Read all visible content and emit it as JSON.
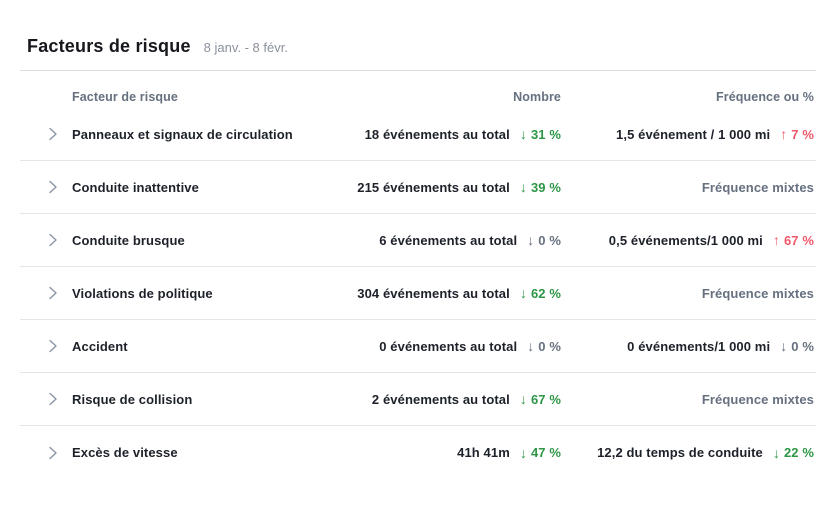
{
  "header": {
    "title": "Facteurs de risque",
    "date_range": "8 janv. - 8 févr."
  },
  "table": {
    "columns": {
      "factor": "Facteur de risque",
      "count": "Nombre",
      "frequency": "Fréquence ou %"
    },
    "rows": [
      {
        "factor": "Panneaux et signaux de circulation",
        "count_value": "18 événements au total",
        "count_trend": {
          "direction": "down",
          "value": "31 %",
          "color": "green"
        },
        "freq_value": "1,5 événement / 1 000 mi",
        "freq_trend": {
          "direction": "up",
          "value": "7 %",
          "color": "red"
        }
      },
      {
        "factor": "Conduite inattentive",
        "count_value": "215 événements au total",
        "count_trend": {
          "direction": "down",
          "value": "39 %",
          "color": "green"
        },
        "freq_mixed": "Fréquence mixtes"
      },
      {
        "factor": "Conduite brusque",
        "count_value": "6 événements au total",
        "count_trend": {
          "direction": "down",
          "value": "0 %",
          "color": "neutral"
        },
        "freq_value": "0,5 événements/1 000 mi",
        "freq_trend": {
          "direction": "up",
          "value": "67 %",
          "color": "red"
        }
      },
      {
        "factor": "Violations de politique",
        "count_value": "304 événements au total",
        "count_trend": {
          "direction": "down",
          "value": "62 %",
          "color": "green"
        },
        "freq_mixed": "Fréquence mixtes"
      },
      {
        "factor": "Accident",
        "count_value": "0 événements au total",
        "count_trend": {
          "direction": "down",
          "value": "0 %",
          "color": "neutral"
        },
        "freq_value": "0 événements/1 000 mi",
        "freq_trend": {
          "direction": "down",
          "value": "0 %",
          "color": "neutral"
        }
      },
      {
        "factor": "Risque de collision",
        "count_value": "2 événements au total",
        "count_trend": {
          "direction": "down",
          "value": "67 %",
          "color": "green"
        },
        "freq_mixed": "Fréquence mixtes"
      },
      {
        "factor": "Excès de vitesse",
        "count_value": "41h 41m",
        "count_trend": {
          "direction": "down",
          "value": "47 %",
          "color": "green"
        },
        "freq_value": "12,2 du temps de conduite",
        "freq_trend": {
          "direction": "down",
          "value": "22 %",
          "color": "green"
        }
      }
    ]
  },
  "icons": {
    "arrow_down": "↓",
    "arrow_up": "↑",
    "chevron_right": "›"
  },
  "colors": {
    "green": "#2d9646",
    "red": "#f0586a",
    "neutral": "#66707f",
    "text_dark": "#1d2129",
    "text_gray": "#66707f",
    "divider": "#e2e5ea"
  }
}
